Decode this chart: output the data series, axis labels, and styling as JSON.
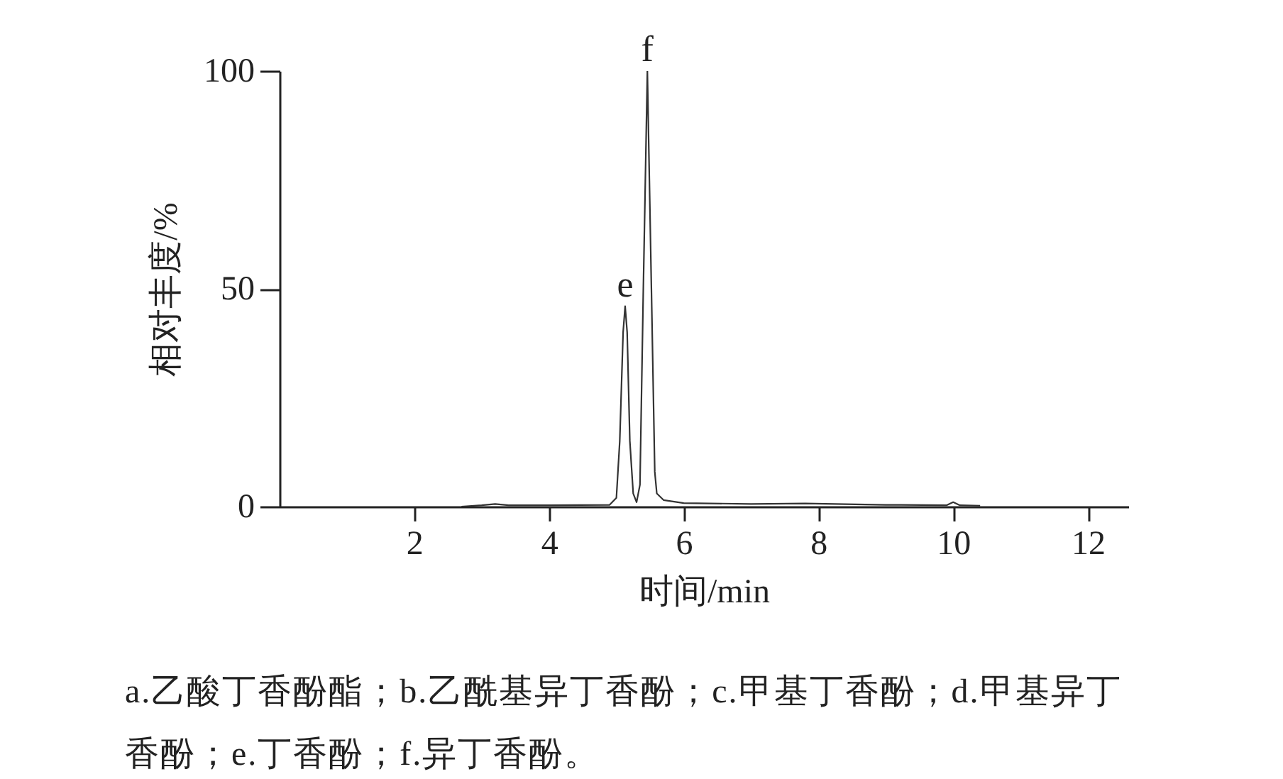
{
  "chart_data": {
    "type": "line",
    "xlabel": "时间/min",
    "ylabel": "相对丰度/%",
    "xlim": [
      0,
      12.6
    ],
    "ylim": [
      0,
      100
    ],
    "xticks": [
      2,
      4,
      6,
      8,
      10,
      12
    ],
    "yticks": [
      0,
      50,
      100
    ],
    "grid": false,
    "marker": "none",
    "line_style": "solid",
    "series": [
      {
        "color": "#333333",
        "x": [
          2.7,
          3.0,
          3.2,
          3.4,
          4.0,
          4.9,
          5.0,
          5.05,
          5.1,
          5.13,
          5.16,
          5.2,
          5.25,
          5.3,
          5.35,
          5.4,
          5.46,
          5.52,
          5.57,
          5.6,
          5.7,
          6.0,
          7.0,
          7.8,
          9.0,
          9.9,
          10.0,
          10.1,
          10.4
        ],
        "values": [
          0,
          0.3,
          0.6,
          0.3,
          0.3,
          0.4,
          2,
          15,
          40,
          46,
          40,
          15,
          3,
          1,
          5,
          50,
          100,
          50,
          8,
          3,
          1.5,
          0.8,
          0.6,
          0.7,
          0.4,
          0.3,
          1,
          0.3,
          0.2
        ]
      }
    ],
    "annotations": [
      {
        "text": "e",
        "x": 5.13,
        "y": 46
      },
      {
        "text": "f",
        "x": 5.46,
        "y": 100
      },
      "a.乙酸丁香酚酯；b.乙酰基异丁香酚；c.甲基丁香酚；d.甲基异丁香酚；e.丁香酚；f.异丁香酚。"
    ]
  }
}
